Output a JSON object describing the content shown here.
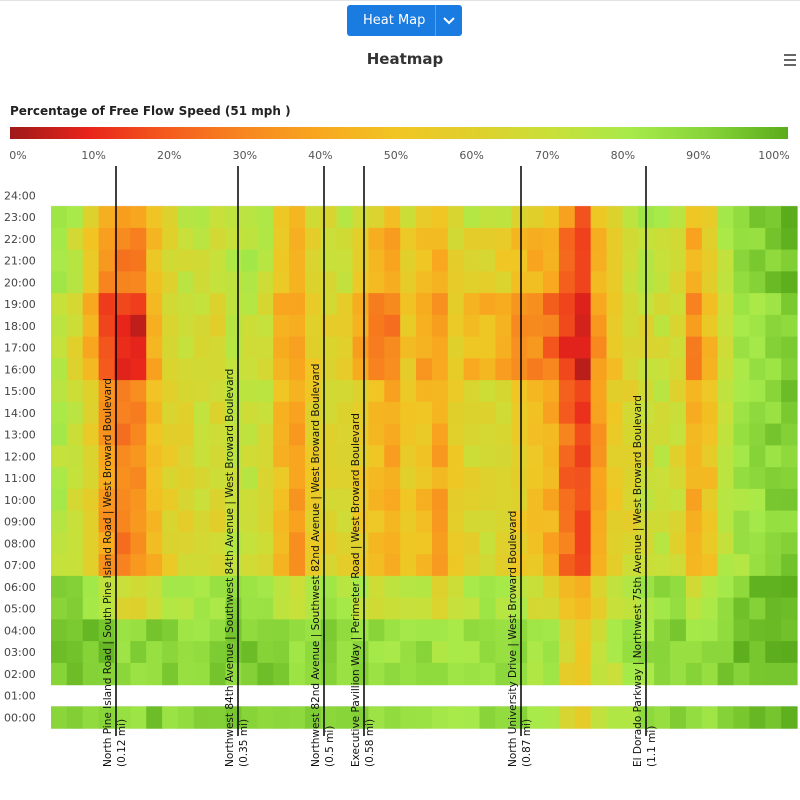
{
  "toolbar": {
    "view_select_label": "Heat Map"
  },
  "chart_data": {
    "type": "heatmap",
    "title": "Heatmap",
    "legend": {
      "title": "Percentage of Free Flow Speed (51 mph )",
      "ticks": [
        "0%",
        "10%",
        "20%",
        "30%",
        "40%",
        "50%",
        "60%",
        "70%",
        "80%",
        "90%",
        "100%"
      ],
      "colors": [
        "#9e1a1a",
        "#e8241b",
        "#f45a1d",
        "#f7861f",
        "#f8a81f",
        "#f0c624",
        "#dfd02c",
        "#c8e03a",
        "#a6ea4a",
        "#86d338",
        "#5aac1c"
      ]
    },
    "y_labels": [
      "24:00",
      "23:00",
      "22:00",
      "21:00",
      "20:00",
      "19:00",
      "18:00",
      "17:00",
      "16:00",
      "15:00",
      "14:00",
      "13:00",
      "12:00",
      "11:00",
      "10:00",
      "09:00",
      "08:00",
      "07:00",
      "06:00",
      "05:00",
      "04:00",
      "03:00",
      "02:00",
      "01:00",
      "00:00"
    ],
    "segments": [
      {
        "name": "North Pine Island Road | South Pine Island Road | West Broward Boulevard",
        "length": "(0.12 mi)"
      },
      {
        "name": "Northwest 84th Avenue | Southwest 84th Avenue | West Broward Boulevard",
        "length": "(0.35 mi)"
      },
      {
        "name": "Northwest 82nd Avenue | Southwest 82nd Avenue | West Broward Boulevard",
        "length": "(0.5 mi)"
      },
      {
        "name": "Executive Pavillion Way | Perimeter Road | West Broward Boulevard",
        "length": "(0.58 mi)"
      },
      {
        "name": "North University Drive | West Broward Boulevard",
        "length": "(0.87 mi)"
      },
      {
        "name": "El Dorado Parkway | Northwest 75th Avenue | West Broward Boulevard",
        "length": "(1.1 mi)"
      }
    ],
    "columns": 47,
    "hours": 24,
    "value_unit": "percent of free flow speed",
    "column_profiles": [
      {
        "day": 75,
        "peak": 72,
        "night": 95
      },
      {
        "day": 70,
        "peak": 62,
        "night": 95
      },
      {
        "day": 58,
        "peak": 40,
        "night": 92
      },
      {
        "day": 38,
        "peak": 20,
        "night": 92
      },
      {
        "day": 30,
        "peak": 12,
        "night": 88
      },
      {
        "day": 30,
        "peak": 10,
        "night": 88
      },
      {
        "day": 45,
        "peak": 40,
        "night": 90
      },
      {
        "day": 58,
        "peak": 60,
        "night": 88
      },
      {
        "day": 62,
        "peak": 65,
        "night": 88
      },
      {
        "day": 66,
        "peak": 68,
        "night": 86
      },
      {
        "day": 64,
        "peak": 62,
        "night": 88
      },
      {
        "day": 70,
        "peak": 72,
        "night": 90
      },
      {
        "day": 72,
        "peak": 72,
        "night": 90
      },
      {
        "day": 68,
        "peak": 68,
        "night": 90
      },
      {
        "day": 48,
        "peak": 45,
        "night": 88
      },
      {
        "day": 38,
        "peak": 36,
        "night": 86
      },
      {
        "day": 55,
        "peak": 55,
        "night": 86
      },
      {
        "day": 60,
        "peak": 62,
        "night": 86
      },
      {
        "day": 62,
        "peak": 60,
        "night": 86
      },
      {
        "day": 55,
        "peak": 40,
        "night": 86
      },
      {
        "day": 48,
        "peak": 32,
        "night": 86
      },
      {
        "day": 42,
        "peak": 28,
        "night": 84
      },
      {
        "day": 55,
        "peak": 52,
        "night": 86
      },
      {
        "day": 48,
        "peak": 40,
        "night": 84
      },
      {
        "day": 40,
        "peak": 35,
        "night": 82
      },
      {
        "day": 55,
        "peak": 55,
        "night": 82
      },
      {
        "day": 62,
        "peak": 45,
        "night": 82
      },
      {
        "day": 66,
        "peak": 45,
        "night": 84
      },
      {
        "day": 62,
        "peak": 40,
        "night": 84
      },
      {
        "day": 55,
        "peak": 35,
        "night": 84
      },
      {
        "day": 48,
        "peak": 30,
        "night": 82
      },
      {
        "day": 42,
        "peak": 25,
        "night": 80
      },
      {
        "day": 25,
        "peak": 14,
        "night": 60
      },
      {
        "day": 16,
        "peak": 6,
        "night": 55
      },
      {
        "day": 38,
        "peak": 35,
        "night": 70
      },
      {
        "day": 55,
        "peak": 50,
        "night": 75
      },
      {
        "day": 62,
        "peak": 62,
        "night": 80
      },
      {
        "day": 68,
        "peak": 66,
        "night": 84
      },
      {
        "day": 70,
        "peak": 68,
        "night": 88
      },
      {
        "day": 65,
        "peak": 62,
        "night": 88
      },
      {
        "day": 42,
        "peak": 32,
        "night": 84
      },
      {
        "day": 50,
        "peak": 48,
        "night": 86
      },
      {
        "day": 72,
        "peak": 70,
        "night": 90
      },
      {
        "day": 80,
        "peak": 78,
        "night": 94
      },
      {
        "day": 84,
        "peak": 82,
        "night": 95
      },
      {
        "day": 88,
        "peak": 86,
        "night": 96
      },
      {
        "day": 90,
        "peak": 88,
        "night": 97
      }
    ]
  }
}
